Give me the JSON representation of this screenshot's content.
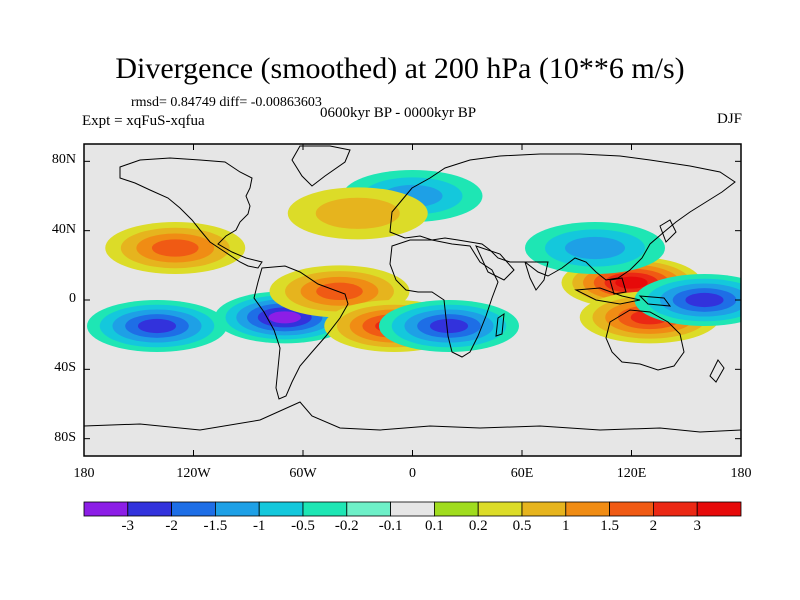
{
  "figure": {
    "title": "Divergence (smoothed) at 200 hPa (10**6 m/s)",
    "stats": "rmsd= 0.84749 diff= -0.00863603",
    "experiment": "Expt = xqFuS-xqfua",
    "period": "0600kyr BP - 0000kyr BP",
    "season": "DJF"
  },
  "axes": {
    "y_ticks": [
      "80N",
      "40N",
      "0",
      "40S",
      "80S"
    ],
    "y_values": [
      80,
      40,
      0,
      -40,
      -80
    ],
    "x_ticks": [
      "180",
      "120W",
      "60W",
      "0",
      "60E",
      "120E",
      "180"
    ],
    "x_values": [
      -180,
      -120,
      -60,
      0,
      60,
      120,
      180
    ]
  },
  "colorbar": {
    "labels": [
      "-3",
      "-2",
      "-1.5",
      "-1",
      "-0.5",
      "-0.2",
      "-0.1",
      "0.1",
      "0.2",
      "0.5",
      "1",
      "1.5",
      "2",
      "3"
    ],
    "colors": [
      "#8c1ee6",
      "#3232dc",
      "#1e6ee6",
      "#1ea0e6",
      "#14c8dc",
      "#1ee6b4",
      "#6ef0c8",
      "#e6e6e6",
      "#a0dc1e",
      "#dcdc28",
      "#e6b41e",
      "#f08c14",
      "#f05a14",
      "#eb2814",
      "#e60a0a"
    ]
  },
  "map_features": [
    {
      "lon": -130,
      "lat": 30,
      "value": 1.5
    },
    {
      "lon": -140,
      "lat": -15,
      "value": -2
    },
    {
      "lon": -70,
      "lat": -10,
      "value": -3
    },
    {
      "lon": -40,
      "lat": 5,
      "value": 1.5
    },
    {
      "lon": -10,
      "lat": -15,
      "value": 2
    },
    {
      "lon": 20,
      "lat": -15,
      "value": -2
    },
    {
      "lon": 120,
      "lat": 10,
      "value": 3
    },
    {
      "lon": 130,
      "lat": -10,
      "value": 2
    },
    {
      "lon": 160,
      "lat": 0,
      "value": -2
    },
    {
      "lon": 100,
      "lat": 30,
      "value": -1
    },
    {
      "lon": 0,
      "lat": 60,
      "value": -1
    },
    {
      "lon": -30,
      "lat": 50,
      "value": 0.5
    }
  ]
}
